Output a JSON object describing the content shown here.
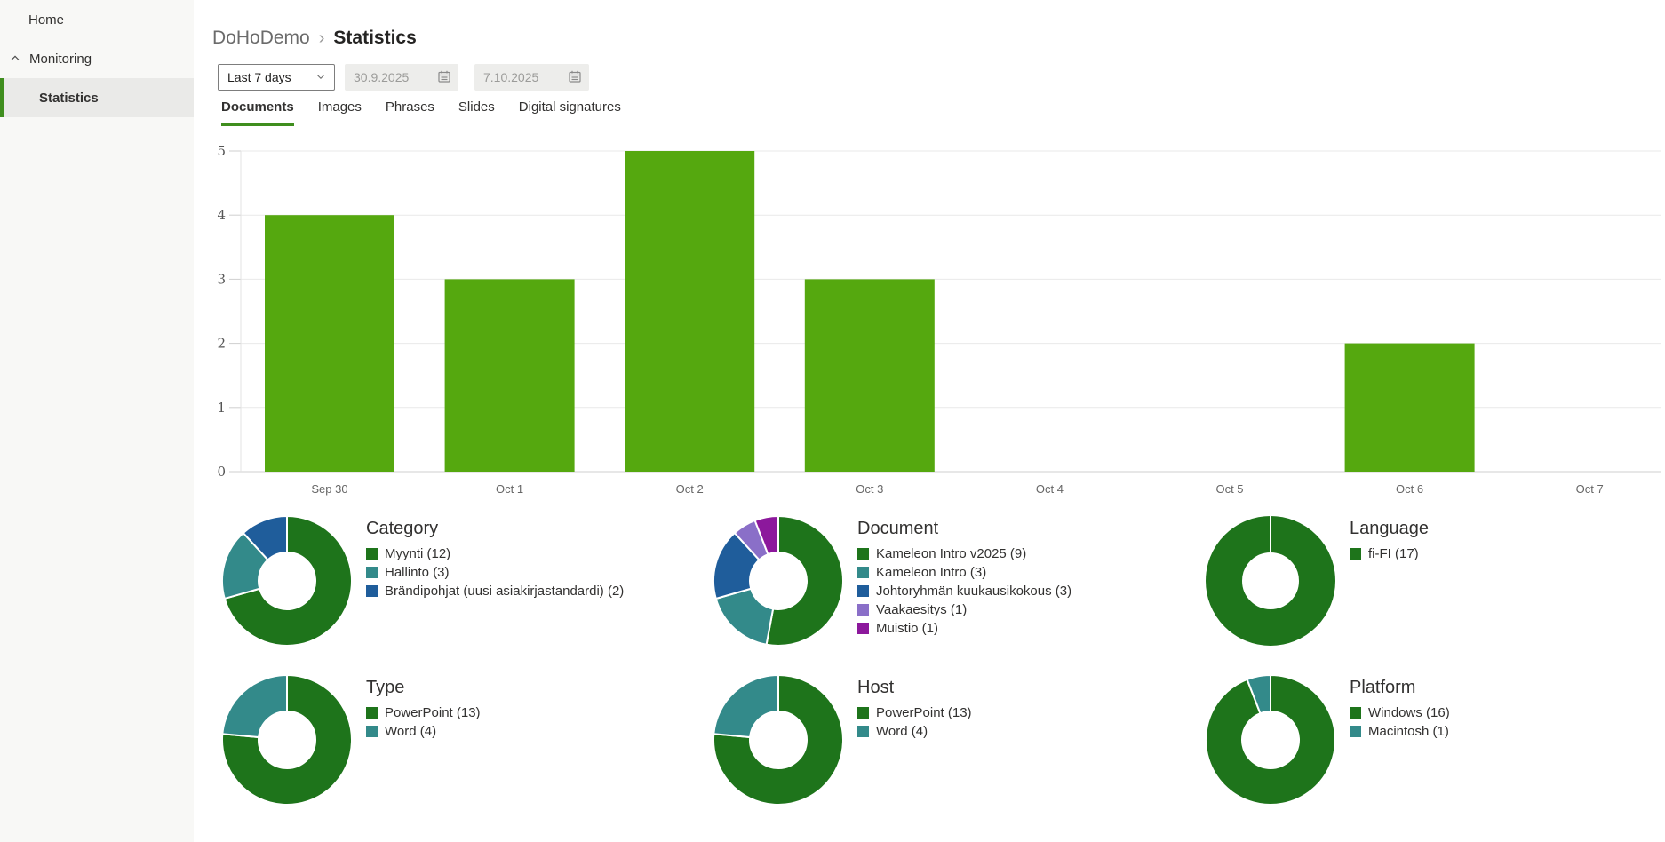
{
  "sidebar": {
    "items": [
      {
        "label": "Home",
        "selected": false
      },
      {
        "label": "Monitoring",
        "selected": false,
        "expanded": true
      },
      {
        "label": "Statistics",
        "selected": true,
        "child": true
      }
    ]
  },
  "breadcrumb": {
    "parent": "DoHoDemo",
    "separator": "›",
    "current": "Statistics"
  },
  "filters": {
    "range": {
      "value": "Last 7 days"
    },
    "start_date": {
      "value": "30.9.2025"
    },
    "end_date": {
      "value": "7.10.2025"
    }
  },
  "tabs": [
    {
      "label": "Documents",
      "active": true
    },
    {
      "label": "Images",
      "active": false
    },
    {
      "label": "Phrases",
      "active": false
    },
    {
      "label": "Slides",
      "active": false
    },
    {
      "label": "Digital signatures",
      "active": false
    }
  ],
  "colors": {
    "accent_green": "#3f8e1e",
    "bar_green": "#55a80f",
    "donut_green": "#1e741b",
    "teal": "#338a8a",
    "blue": "#1f5d9b",
    "light_purple": "#8a6fc8",
    "magenta": "#8c189c",
    "sidebar_bg": "#f8f8f6",
    "selected_row_bg": "#eaeae8"
  },
  "chart_data": [
    {
      "type": "bar",
      "title": "",
      "xlabel": "",
      "ylabel": "",
      "categories": [
        "Sep 30",
        "Oct 1",
        "Oct 2",
        "Oct 3",
        "Oct 4",
        "Oct 5",
        "Oct 6",
        "Oct 7"
      ],
      "values": [
        4,
        3,
        5,
        3,
        0,
        0,
        2,
        0
      ],
      "ylim": [
        0,
        5
      ],
      "yticks": [
        0,
        1,
        2,
        3,
        4,
        5
      ],
      "bar_color": "#55a80f",
      "grid": true,
      "legend": "none"
    },
    {
      "type": "pie",
      "donut": true,
      "title": "Category",
      "labels": [
        "Myynti (12)",
        "Hallinto (3)",
        "Brändipohjat (uusi asiakirjastandardi) (2)"
      ],
      "values": [
        12,
        3,
        2
      ],
      "colors": [
        "#1e741b",
        "#338a8a",
        "#1f5d9b"
      ]
    },
    {
      "type": "pie",
      "donut": true,
      "title": "Document",
      "labels": [
        "Kameleon Intro v2025 (9)",
        "Kameleon Intro (3)",
        "Johtoryhmän kuukausikokous (3)",
        "Vaakaesitys (1)",
        "Muistio (1)"
      ],
      "values": [
        9,
        3,
        3,
        1,
        1
      ],
      "colors": [
        "#1e741b",
        "#338a8a",
        "#1f5d9b",
        "#8a6fc8",
        "#8c189c"
      ]
    },
    {
      "type": "pie",
      "donut": true,
      "title": "Language",
      "labels": [
        "fi-FI (17)"
      ],
      "values": [
        17
      ],
      "colors": [
        "#1e741b"
      ]
    },
    {
      "type": "pie",
      "donut": true,
      "title": "Type",
      "labels": [
        "PowerPoint (13)",
        "Word (4)"
      ],
      "values": [
        13,
        4
      ],
      "colors": [
        "#1e741b",
        "#338a8a"
      ]
    },
    {
      "type": "pie",
      "donut": true,
      "title": "Host",
      "labels": [
        "PowerPoint (13)",
        "Word (4)"
      ],
      "values": [
        13,
        4
      ],
      "colors": [
        "#1e741b",
        "#338a8a"
      ]
    },
    {
      "type": "pie",
      "donut": true,
      "title": "Platform",
      "labels": [
        "Windows (16)",
        "Macintosh (1)"
      ],
      "values": [
        16,
        1
      ],
      "colors": [
        "#1e741b",
        "#338a8a"
      ]
    }
  ]
}
